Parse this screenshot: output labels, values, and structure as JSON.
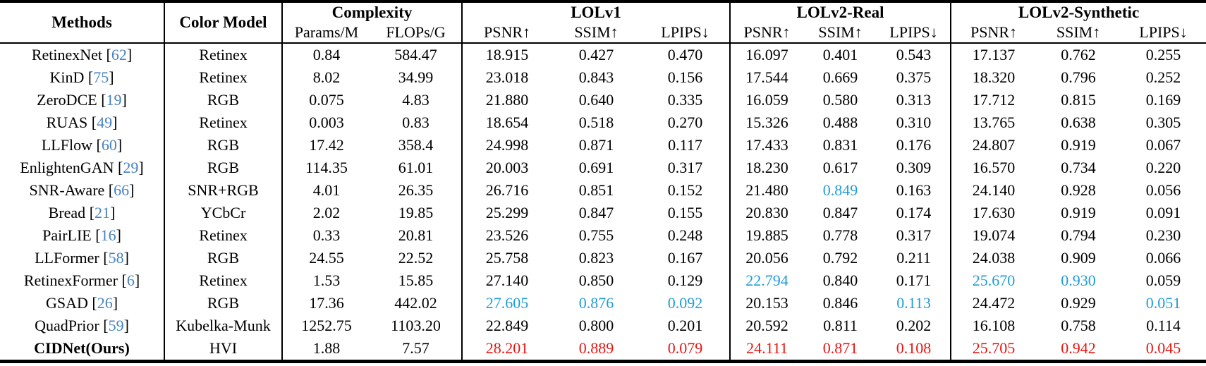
{
  "table": {
    "header": {
      "methods": "Methods",
      "color_model": "Color Model",
      "groups": [
        {
          "label": "Complexity",
          "sub": [
            "Params/M",
            "FLOPs/G"
          ]
        },
        {
          "label": "LOLv1",
          "sub": [
            "PSNR↑",
            "SSIM↑",
            "LPIPS↓"
          ]
        },
        {
          "label": "LOLv2-Real",
          "sub": [
            "PSNR↑",
            "SSIM↑",
            "LPIPS↓"
          ]
        },
        {
          "label": "LOLv2-Synthetic",
          "sub": [
            "PSNR↑",
            "SSIM↑",
            "LPIPS↓"
          ]
        }
      ]
    },
    "colors": {
      "best": "#e81410",
      "second_best": "#1f9cd9",
      "citation": "#4682c0"
    },
    "rows": [
      {
        "method": "RetinexNet",
        "citation": "62",
        "bold": false,
        "color_model": "Retinex",
        "values": [
          "0.84",
          "584.47",
          "18.915",
          "0.427",
          "0.470",
          "16.097",
          "0.401",
          "0.543",
          "17.137",
          "0.762",
          "0.255"
        ],
        "marks": {}
      },
      {
        "method": "KinD",
        "citation": "75",
        "bold": false,
        "color_model": "Retinex",
        "values": [
          "8.02",
          "34.99",
          "23.018",
          "0.843",
          "0.156",
          "17.544",
          "0.669",
          "0.375",
          "18.320",
          "0.796",
          "0.252"
        ],
        "marks": {}
      },
      {
        "method": "ZeroDCE",
        "citation": "19",
        "bold": false,
        "color_model": "RGB",
        "values": [
          "0.075",
          "4.83",
          "21.880",
          "0.640",
          "0.335",
          "16.059",
          "0.580",
          "0.313",
          "17.712",
          "0.815",
          "0.169"
        ],
        "marks": {}
      },
      {
        "method": "RUAS",
        "citation": "49",
        "bold": false,
        "color_model": "Retinex",
        "values": [
          "0.003",
          "0.83",
          "18.654",
          "0.518",
          "0.270",
          "15.326",
          "0.488",
          "0.310",
          "13.765",
          "0.638",
          "0.305"
        ],
        "marks": {}
      },
      {
        "method": "LLFlow",
        "citation": "60",
        "bold": false,
        "color_model": "RGB",
        "values": [
          "17.42",
          "358.4",
          "24.998",
          "0.871",
          "0.117",
          "17.433",
          "0.831",
          "0.176",
          "24.807",
          "0.919",
          "0.067"
        ],
        "marks": {}
      },
      {
        "method": "EnlightenGAN",
        "citation": "29",
        "bold": false,
        "color_model": "RGB",
        "values": [
          "114.35",
          "61.01",
          "20.003",
          "0.691",
          "0.317",
          "18.230",
          "0.617",
          "0.309",
          "16.570",
          "0.734",
          "0.220"
        ],
        "marks": {}
      },
      {
        "method": "SNR-Aware",
        "citation": "66",
        "bold": false,
        "color_model": "SNR+RGB",
        "values": [
          "4.01",
          "26.35",
          "26.716",
          "0.851",
          "0.152",
          "21.480",
          "0.849",
          "0.163",
          "24.140",
          "0.928",
          "0.056"
        ],
        "marks": {
          "6": "second"
        }
      },
      {
        "method": "Bread",
        "citation": "21",
        "bold": false,
        "color_model": "YCbCr",
        "values": [
          "2.02",
          "19.85",
          "25.299",
          "0.847",
          "0.155",
          "20.830",
          "0.847",
          "0.174",
          "17.630",
          "0.919",
          "0.091"
        ],
        "marks": {}
      },
      {
        "method": "PairLIE",
        "citation": "16",
        "bold": false,
        "color_model": "Retinex",
        "values": [
          "0.33",
          "20.81",
          "23.526",
          "0.755",
          "0.248",
          "19.885",
          "0.778",
          "0.317",
          "19.074",
          "0.794",
          "0.230"
        ],
        "marks": {}
      },
      {
        "method": "LLFormer",
        "citation": "58",
        "bold": false,
        "color_model": "RGB",
        "values": [
          "24.55",
          "22.52",
          "25.758",
          "0.823",
          "0.167",
          "20.056",
          "0.792",
          "0.211",
          "24.038",
          "0.909",
          "0.066"
        ],
        "marks": {}
      },
      {
        "method": "RetinexFormer",
        "citation": "6",
        "bold": false,
        "color_model": "Retinex",
        "values": [
          "1.53",
          "15.85",
          "27.140",
          "0.850",
          "0.129",
          "22.794",
          "0.840",
          "0.171",
          "25.670",
          "0.930",
          "0.059"
        ],
        "marks": {
          "5": "second",
          "8": "second",
          "9": "second"
        }
      },
      {
        "method": "GSAD",
        "citation": "26",
        "bold": false,
        "color_model": "RGB",
        "values": [
          "17.36",
          "442.02",
          "27.605",
          "0.876",
          "0.092",
          "20.153",
          "0.846",
          "0.113",
          "24.472",
          "0.929",
          "0.051"
        ],
        "marks": {
          "2": "second",
          "3": "second",
          "4": "second",
          "7": "second",
          "10": "second"
        }
      },
      {
        "method": "QuadPrior",
        "citation": "59",
        "bold": false,
        "color_model": "Kubelka-Munk",
        "values": [
          "1252.75",
          "1103.20",
          "22.849",
          "0.800",
          "0.201",
          "20.592",
          "0.811",
          "0.202",
          "16.108",
          "0.758",
          "0.114"
        ],
        "marks": {}
      },
      {
        "method": "CIDNet(Ours)",
        "citation": null,
        "bold": true,
        "color_model": "HVI",
        "values": [
          "1.88",
          "7.57",
          "28.201",
          "0.889",
          "0.079",
          "24.111",
          "0.871",
          "0.108",
          "25.705",
          "0.942",
          "0.045"
        ],
        "marks": {
          "2": "best",
          "3": "best",
          "4": "best",
          "5": "best",
          "6": "best",
          "7": "best",
          "8": "best",
          "9": "best",
          "10": "best"
        }
      }
    ]
  }
}
